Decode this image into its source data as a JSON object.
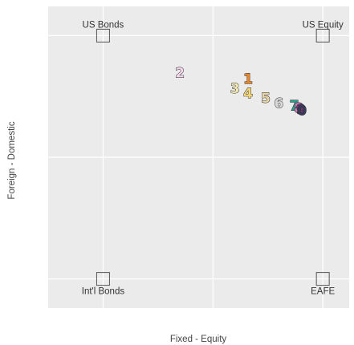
{
  "chart_data": {
    "type": "scatter",
    "title": "",
    "xlabel": "Fixed - Equity",
    "ylabel": "Foreign - Domestic",
    "xlim": [
      -0.25,
      1.12
    ],
    "ylim": [
      -0.12,
      1.12
    ],
    "grid": true,
    "corner_labels": [
      {
        "name": "US Bonds",
        "x": 0,
        "y": 1
      },
      {
        "name": "US Equity",
        "x": 1,
        "y": 1
      },
      {
        "name": "Int'l Bonds",
        "x": 0,
        "y": 0
      },
      {
        "name": "EAFE",
        "x": 1,
        "y": 0
      }
    ],
    "points": [
      {
        "label": "1",
        "x": 0.66,
        "y": 0.82,
        "color": "#e8862a"
      },
      {
        "label": "2",
        "x": 0.35,
        "y": 0.845,
        "color": "#f3d6ec"
      },
      {
        "label": "3",
        "x": 0.6,
        "y": 0.78,
        "color": "#f0e6b0"
      },
      {
        "label": "4",
        "x": 0.66,
        "y": 0.76,
        "color": "#f5d77a"
      },
      {
        "label": "5",
        "x": 0.74,
        "y": 0.74,
        "color": "#e8d5a6"
      },
      {
        "label": "6",
        "x": 0.8,
        "y": 0.72,
        "color": "#d9d9d9"
      },
      {
        "label": "7",
        "x": 0.87,
        "y": 0.71,
        "color": "#2f9d89"
      },
      {
        "label": "8",
        "x": 0.89,
        "y": 0.7,
        "color": "#c77bb5"
      },
      {
        "label": "9",
        "x": 0.9,
        "y": 0.695,
        "color": "#6f3b74"
      },
      {
        "label": "0",
        "x": 0.905,
        "y": 0.69,
        "color": "#3a3a5c"
      }
    ]
  }
}
